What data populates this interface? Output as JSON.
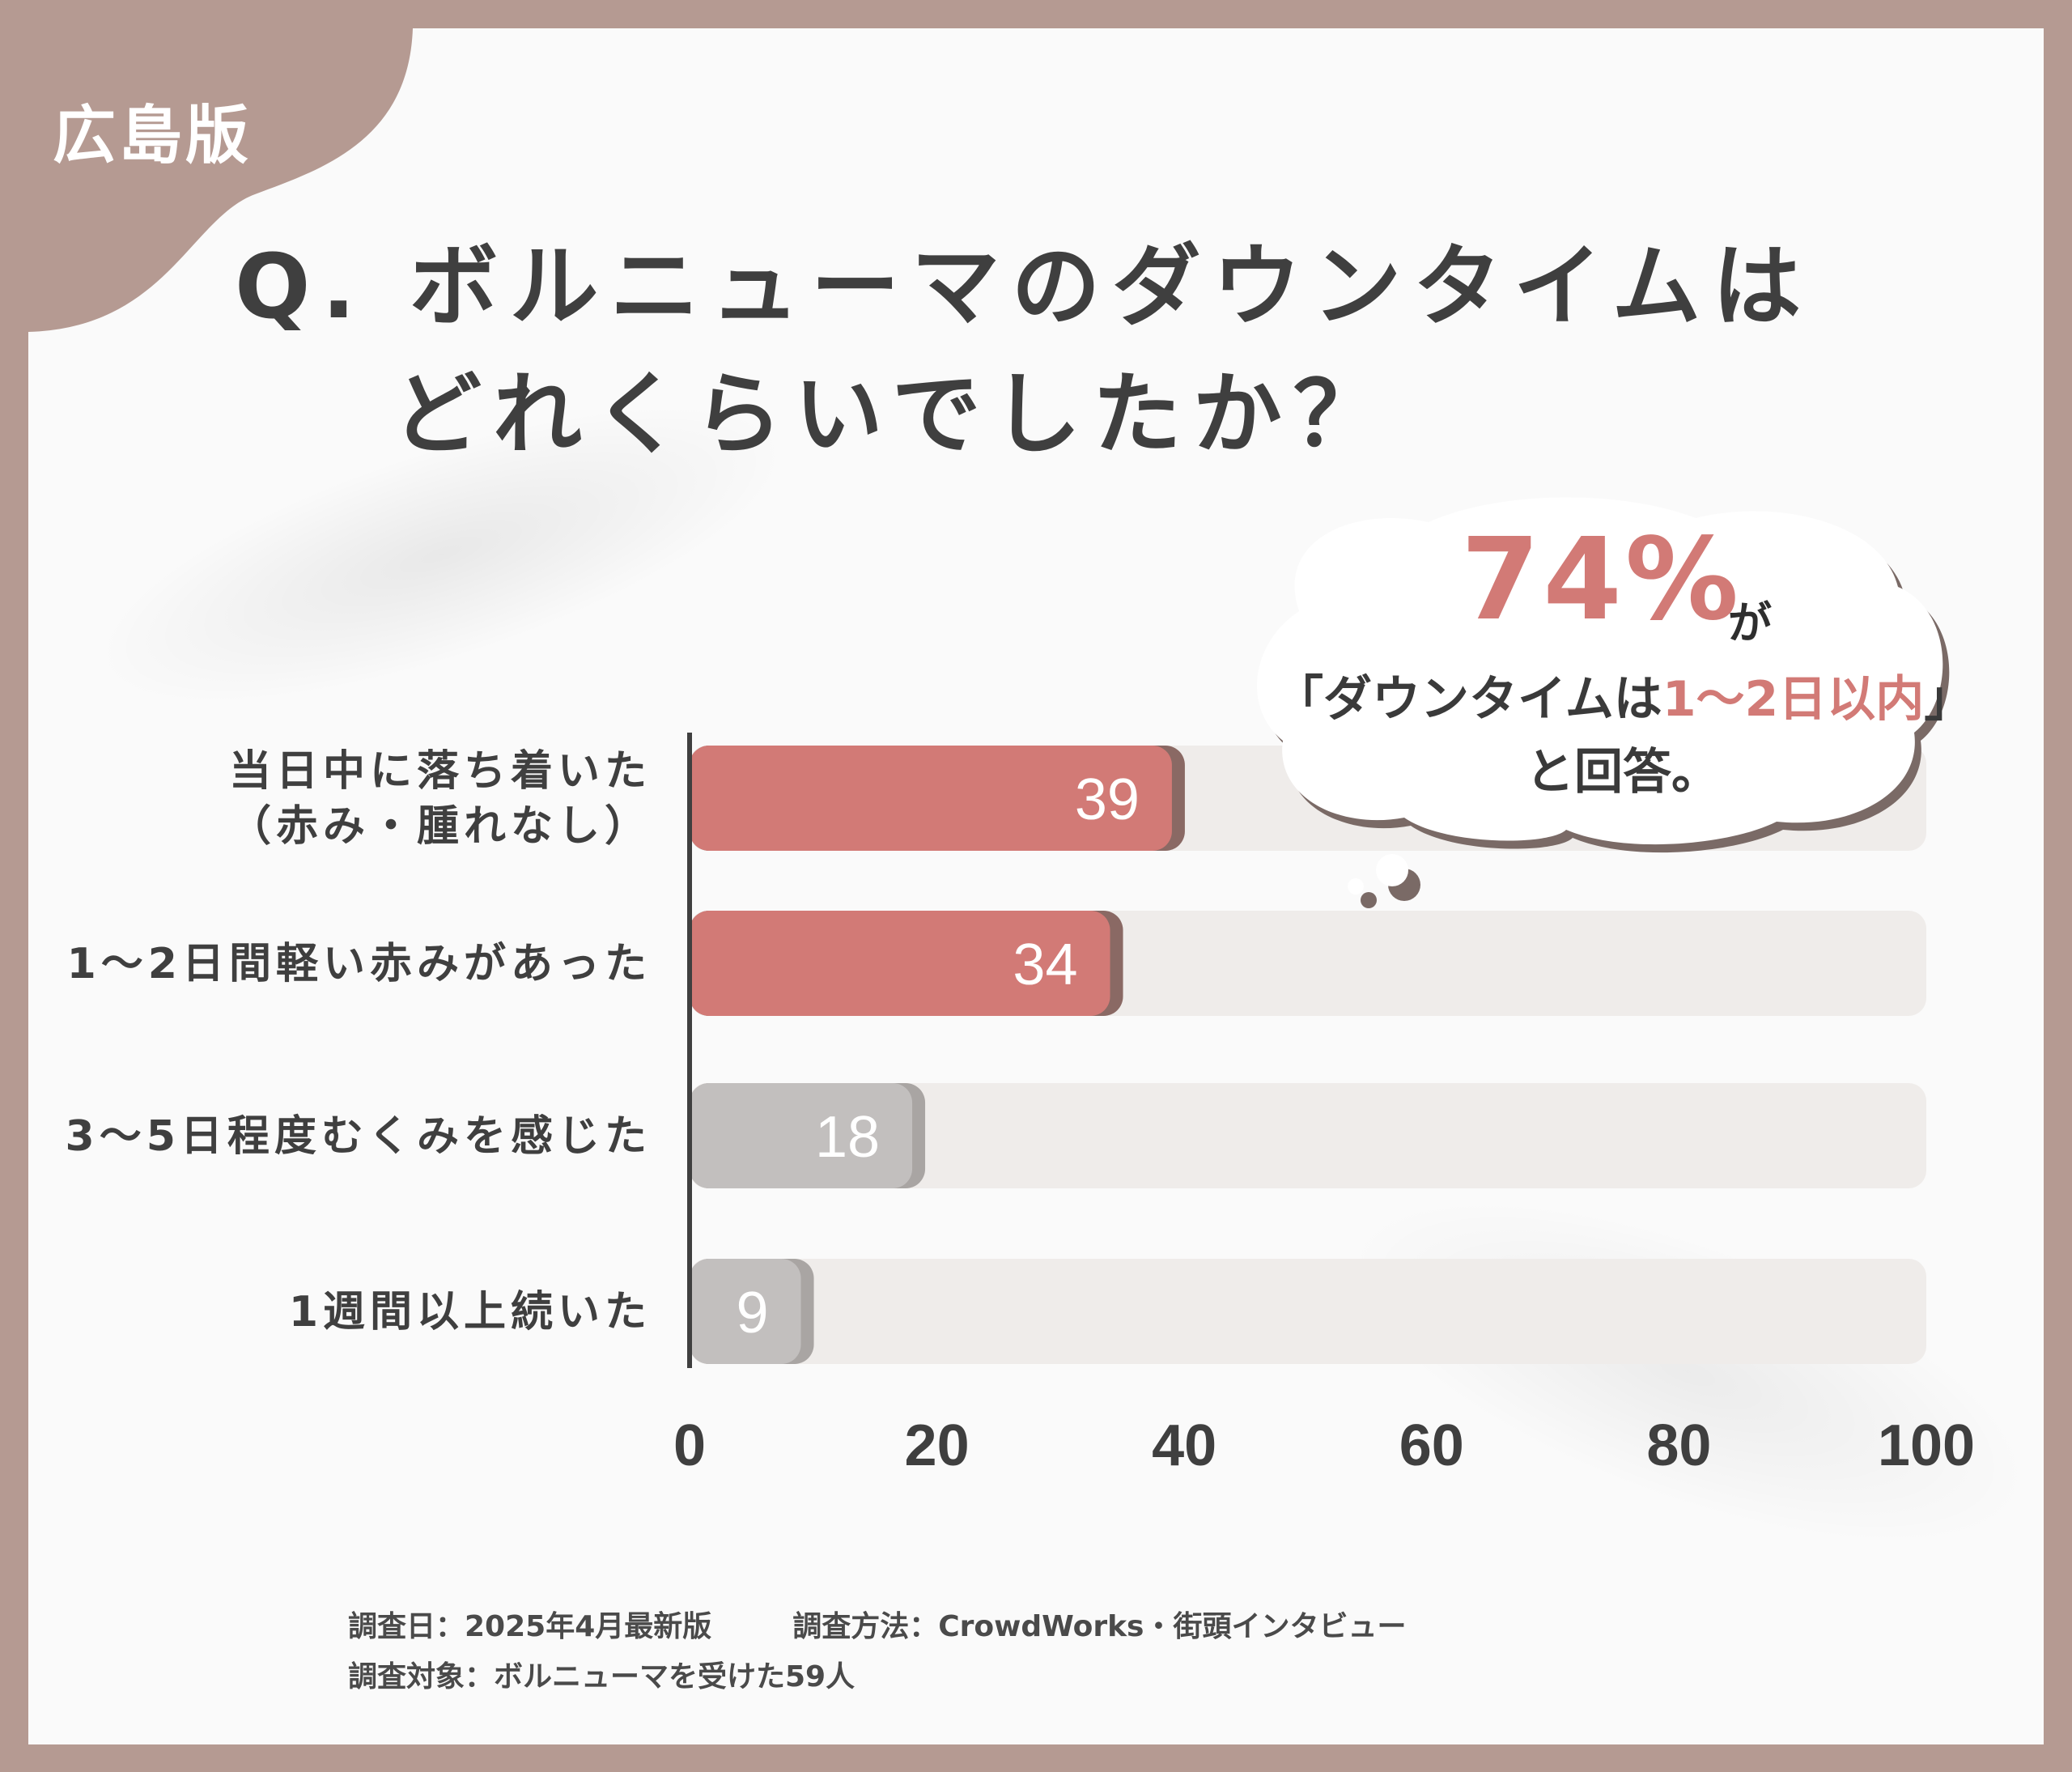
{
  "header": {
    "region": "広島版"
  },
  "question": {
    "line1": "Q. ボルニューマのダウンタイムは",
    "line2": "どれくらいでしたか？"
  },
  "callout": {
    "percent": "74%",
    "suffix": "が",
    "line2_pre": "「ダウンタイムは",
    "line2_highlight": "1〜2日以内",
    "line2_post": "」",
    "line3": "と回答。"
  },
  "chart_data": {
    "type": "bar",
    "orientation": "horizontal",
    "categories": [
      "当日中に落ち着いた\n（赤み・腫れなし）",
      "1〜2日間軽い赤みがあった",
      "3〜5日程度むくみを感じた",
      "1週間以上続いた"
    ],
    "values": [
      39,
      34,
      18,
      9
    ],
    "xlim": [
      0,
      100
    ],
    "xticks": [
      0,
      20,
      40,
      60,
      80,
      100
    ],
    "grid": false,
    "colors": {
      "highlight": "#d27a76",
      "muted": "#c2bfbe",
      "track": "#efecea"
    },
    "highlight": [
      true,
      true,
      false,
      false
    ]
  },
  "footer": {
    "date": "調査日：2025年4月最新版",
    "method": "調査方法：CrowdWorks・街頭インタビュー",
    "target": "調査対象：ボルニューマを受けた59人"
  }
}
